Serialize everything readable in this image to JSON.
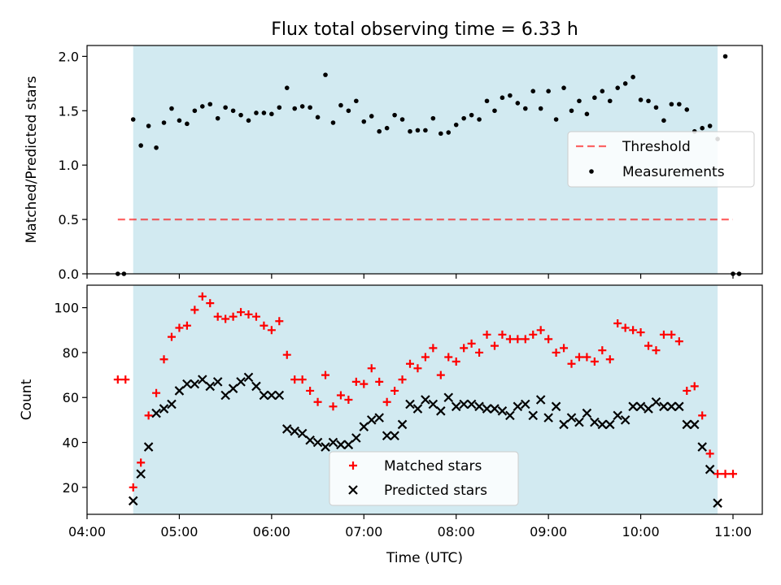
{
  "title": "Flux total observing time = 6.33 h",
  "colors": {
    "band": "#add8e6",
    "threshold": "#ff0000",
    "measurement": "#000000",
    "matched": "#ff0000",
    "predicted": "#000000"
  },
  "chart_data": [
    {
      "type": "scatter",
      "ylabel": "Matched/Predicted stars",
      "ylim": [
        0,
        2.1
      ],
      "xlim": [
        "04:00",
        "11:00"
      ],
      "yticks": [
        {
          "value": 0.0,
          "label": "0.0"
        },
        {
          "value": 0.5,
          "label": "0.5"
        },
        {
          "value": 1.0,
          "label": "1.0"
        },
        {
          "value": 1.5,
          "label": "1.5"
        },
        {
          "value": 2.0,
          "label": "2.0"
        }
      ],
      "observing_band": [
        "04:30",
        "10:50"
      ],
      "threshold": {
        "name": "Threshold",
        "value": 0.5,
        "x_range": [
          "04:20",
          "11:00"
        ]
      },
      "legend": {
        "position": "center-right",
        "entries": [
          "Threshold",
          "Measurements"
        ]
      },
      "series": [
        {
          "name": "Measurements",
          "points": [
            [
              "04:20",
              0
            ],
            [
              "04:24",
              0
            ],
            [
              "04:30",
              1.42
            ],
            [
              "04:35",
              1.18
            ],
            [
              "04:40",
              1.36
            ],
            [
              "04:45",
              1.16
            ],
            [
              "04:50",
              1.39
            ],
            [
              "04:55",
              1.52
            ],
            [
              "05:00",
              1.41
            ],
            [
              "05:05",
              1.38
            ],
            [
              "05:10",
              1.5
            ],
            [
              "05:15",
              1.54
            ],
            [
              "05:20",
              1.56
            ],
            [
              "05:25",
              1.43
            ],
            [
              "05:30",
              1.53
            ],
            [
              "05:35",
              1.5
            ],
            [
              "05:40",
              1.46
            ],
            [
              "05:45",
              1.41
            ],
            [
              "05:50",
              1.48
            ],
            [
              "05:55",
              1.48
            ],
            [
              "06:00",
              1.47
            ],
            [
              "06:05",
              1.53
            ],
            [
              "06:10",
              1.71
            ],
            [
              "06:15",
              1.52
            ],
            [
              "06:20",
              1.54
            ],
            [
              "06:25",
              1.53
            ],
            [
              "06:30",
              1.44
            ],
            [
              "06:35",
              1.83
            ],
            [
              "06:40",
              1.39
            ],
            [
              "06:45",
              1.55
            ],
            [
              "06:50",
              1.5
            ],
            [
              "06:55",
              1.59
            ],
            [
              "07:00",
              1.4
            ],
            [
              "07:05",
              1.45
            ],
            [
              "07:10",
              1.31
            ],
            [
              "07:15",
              1.34
            ],
            [
              "07:20",
              1.46
            ],
            [
              "07:25",
              1.42
            ],
            [
              "07:30",
              1.31
            ],
            [
              "07:35",
              1.32
            ],
            [
              "07:40",
              1.32
            ],
            [
              "07:45",
              1.43
            ],
            [
              "07:50",
              1.29
            ],
            [
              "07:55",
              1.3
            ],
            [
              "08:00",
              1.37
            ],
            [
              "08:05",
              1.43
            ],
            [
              "08:10",
              1.46
            ],
            [
              "08:15",
              1.42
            ],
            [
              "08:20",
              1.59
            ],
            [
              "08:25",
              1.5
            ],
            [
              "08:30",
              1.62
            ],
            [
              "08:35",
              1.64
            ],
            [
              "08:40",
              1.57
            ],
            [
              "08:45",
              1.52
            ],
            [
              "08:50",
              1.68
            ],
            [
              "08:55",
              1.52
            ],
            [
              "09:00",
              1.68
            ],
            [
              "09:05",
              1.42
            ],
            [
              "09:10",
              1.71
            ],
            [
              "09:15",
              1.5
            ],
            [
              "09:20",
              1.59
            ],
            [
              "09:25",
              1.47
            ],
            [
              "09:30",
              1.62
            ],
            [
              "09:35",
              1.68
            ],
            [
              "09:40",
              1.59
            ],
            [
              "09:45",
              1.71
            ],
            [
              "09:50",
              1.75
            ],
            [
              "09:55",
              1.81
            ],
            [
              "10:00",
              1.6
            ],
            [
              "10:05",
              1.59
            ],
            [
              "10:10",
              1.53
            ],
            [
              "10:15",
              1.41
            ],
            [
              "10:20",
              1.56
            ],
            [
              "10:25",
              1.56
            ],
            [
              "10:30",
              1.51
            ],
            [
              "10:35",
              1.31
            ],
            [
              "10:40",
              1.34
            ],
            [
              "10:45",
              1.36
            ],
            [
              "10:50",
              1.24
            ],
            [
              "10:55",
              2.0
            ],
            [
              "11:00",
              0
            ],
            [
              "11:04",
              0
            ]
          ]
        }
      ]
    },
    {
      "type": "scatter",
      "xlabel": "Time (UTC)",
      "ylabel": "Count",
      "ylim": [
        8,
        110
      ],
      "xlim": [
        "04:00",
        "11:00"
      ],
      "xticks": [
        "04:00",
        "05:00",
        "06:00",
        "07:00",
        "08:00",
        "09:00",
        "10:00",
        "11:00"
      ],
      "yticks": [
        {
          "value": 20,
          "label": "20"
        },
        {
          "value": 40,
          "label": "40"
        },
        {
          "value": 60,
          "label": "60"
        },
        {
          "value": 80,
          "label": "80"
        },
        {
          "value": 100,
          "label": "100"
        }
      ],
      "observing_band": [
        "04:30",
        "10:50"
      ],
      "legend": {
        "position": "lower-center",
        "entries": [
          "Matched stars",
          "Predicted stars"
        ]
      },
      "series": [
        {
          "name": "Matched stars",
          "points": [
            [
              "04:20",
              68
            ],
            [
              "04:25",
              68
            ],
            [
              "04:30",
              20
            ],
            [
              "04:35",
              31
            ],
            [
              "04:40",
              52
            ],
            [
              "04:45",
              62
            ],
            [
              "04:50",
              77
            ],
            [
              "04:55",
              87
            ],
            [
              "05:00",
              91
            ],
            [
              "05:05",
              92
            ],
            [
              "05:10",
              99
            ],
            [
              "05:15",
              105
            ],
            [
              "05:20",
              102
            ],
            [
              "05:25",
              96
            ],
            [
              "05:30",
              95
            ],
            [
              "05:35",
              96
            ],
            [
              "05:40",
              98
            ],
            [
              "05:45",
              97
            ],
            [
              "05:50",
              96
            ],
            [
              "05:55",
              92
            ],
            [
              "06:00",
              90
            ],
            [
              "06:05",
              94
            ],
            [
              "06:10",
              79
            ],
            [
              "06:15",
              68
            ],
            [
              "06:20",
              68
            ],
            [
              "06:25",
              63
            ],
            [
              "06:30",
              58
            ],
            [
              "06:35",
              70
            ],
            [
              "06:40",
              56
            ],
            [
              "06:45",
              61
            ],
            [
              "06:50",
              59
            ],
            [
              "06:55",
              67
            ],
            [
              "07:00",
              66
            ],
            [
              "07:05",
              73
            ],
            [
              "07:10",
              67
            ],
            [
              "07:15",
              58
            ],
            [
              "07:20",
              63
            ],
            [
              "07:25",
              68
            ],
            [
              "07:30",
              75
            ],
            [
              "07:35",
              73
            ],
            [
              "07:40",
              78
            ],
            [
              "07:45",
              82
            ],
            [
              "07:50",
              70
            ],
            [
              "07:55",
              78
            ],
            [
              "08:00",
              76
            ],
            [
              "08:05",
              82
            ],
            [
              "08:10",
              84
            ],
            [
              "08:15",
              80
            ],
            [
              "08:20",
              88
            ],
            [
              "08:25",
              83
            ],
            [
              "08:30",
              88
            ],
            [
              "08:35",
              86
            ],
            [
              "08:40",
              86
            ],
            [
              "08:45",
              86
            ],
            [
              "08:50",
              88
            ],
            [
              "08:55",
              90
            ],
            [
              "09:00",
              86
            ],
            [
              "09:05",
              80
            ],
            [
              "09:10",
              82
            ],
            [
              "09:15",
              75
            ],
            [
              "09:20",
              78
            ],
            [
              "09:25",
              78
            ],
            [
              "09:30",
              76
            ],
            [
              "09:35",
              81
            ],
            [
              "09:40",
              77
            ],
            [
              "09:45",
              93
            ],
            [
              "09:50",
              91
            ],
            [
              "09:55",
              90
            ],
            [
              "10:00",
              89
            ],
            [
              "10:05",
              83
            ],
            [
              "10:10",
              81
            ],
            [
              "10:15",
              88
            ],
            [
              "10:20",
              88
            ],
            [
              "10:25",
              85
            ],
            [
              "10:30",
              63
            ],
            [
              "10:35",
              65
            ],
            [
              "10:40",
              52
            ],
            [
              "10:45",
              35
            ],
            [
              "10:50",
              26
            ],
            [
              "10:55",
              26
            ],
            [
              "11:00",
              26
            ]
          ]
        },
        {
          "name": "Predicted stars",
          "points": [
            [
              "04:30",
              14
            ],
            [
              "04:35",
              26
            ],
            [
              "04:40",
              38
            ],
            [
              "04:45",
              53
            ],
            [
              "04:50",
              55
            ],
            [
              "04:55",
              57
            ],
            [
              "05:00",
              63
            ],
            [
              "05:05",
              66
            ],
            [
              "05:10",
              66
            ],
            [
              "05:15",
              68
            ],
            [
              "05:20",
              65
            ],
            [
              "05:25",
              67
            ],
            [
              "05:30",
              61
            ],
            [
              "05:35",
              64
            ],
            [
              "05:40",
              67
            ],
            [
              "05:45",
              69
            ],
            [
              "05:50",
              65
            ],
            [
              "05:55",
              61
            ],
            [
              "06:00",
              61
            ],
            [
              "06:05",
              61
            ],
            [
              "06:10",
              46
            ],
            [
              "06:15",
              45
            ],
            [
              "06:20",
              44
            ],
            [
              "06:25",
              41
            ],
            [
              "06:30",
              40
            ],
            [
              "06:35",
              38
            ],
            [
              "06:40",
              40
            ],
            [
              "06:45",
              39
            ],
            [
              "06:50",
              39
            ],
            [
              "06:55",
              42
            ],
            [
              "07:00",
              47
            ],
            [
              "07:05",
              50
            ],
            [
              "07:10",
              51
            ],
            [
              "07:15",
              43
            ],
            [
              "07:20",
              43
            ],
            [
              "07:25",
              48
            ],
            [
              "07:30",
              57
            ],
            [
              "07:35",
              55
            ],
            [
              "07:40",
              59
            ],
            [
              "07:45",
              57
            ],
            [
              "07:50",
              54
            ],
            [
              "07:55",
              60
            ],
            [
              "08:00",
              56
            ],
            [
              "08:05",
              57
            ],
            [
              "08:10",
              57
            ],
            [
              "08:15",
              56
            ],
            [
              "08:20",
              55
            ],
            [
              "08:25",
              55
            ],
            [
              "08:30",
              54
            ],
            [
              "08:35",
              52
            ],
            [
              "08:40",
              56
            ],
            [
              "08:45",
              57
            ],
            [
              "08:50",
              52
            ],
            [
              "08:55",
              59
            ],
            [
              "09:00",
              51
            ],
            [
              "09:05",
              56
            ],
            [
              "09:10",
              48
            ],
            [
              "09:15",
              51
            ],
            [
              "09:20",
              49
            ],
            [
              "09:25",
              53
            ],
            [
              "09:30",
              49
            ],
            [
              "09:35",
              48
            ],
            [
              "09:40",
              48
            ],
            [
              "09:45",
              52
            ],
            [
              "09:50",
              50
            ],
            [
              "09:55",
              56
            ],
            [
              "10:00",
              56
            ],
            [
              "10:05",
              55
            ],
            [
              "10:10",
              58
            ],
            [
              "10:15",
              56
            ],
            [
              "10:20",
              56
            ],
            [
              "10:25",
              56
            ],
            [
              "10:30",
              48
            ],
            [
              "10:35",
              48
            ],
            [
              "10:40",
              38
            ],
            [
              "10:45",
              28
            ],
            [
              "10:50",
              13
            ]
          ]
        }
      ]
    }
  ]
}
